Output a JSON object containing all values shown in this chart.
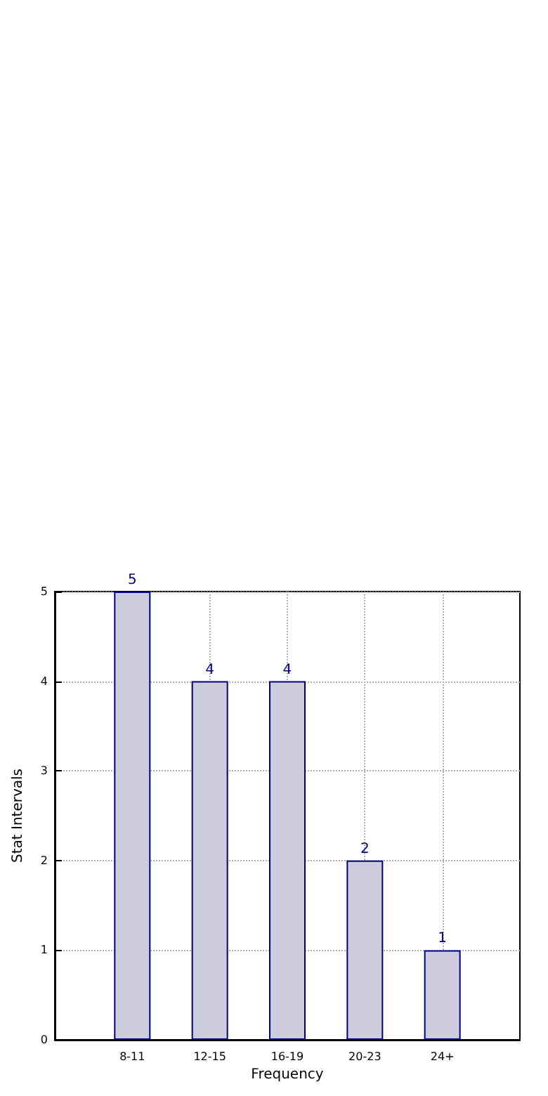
{
  "chart_data": {
    "type": "bar",
    "xlabel": "Frequency",
    "ylabel": "Stat Intervals",
    "categories": [
      "8-11",
      "12-15",
      "16-19",
      "20-23",
      "24+"
    ],
    "values": [
      5,
      4,
      4,
      2,
      1
    ],
    "color": "#ccccdd",
    "ylim": [
      0,
      5
    ],
    "yticks": [
      0,
      1,
      2,
      3,
      4,
      5
    ],
    "grid": true,
    "data_labels": true
  }
}
